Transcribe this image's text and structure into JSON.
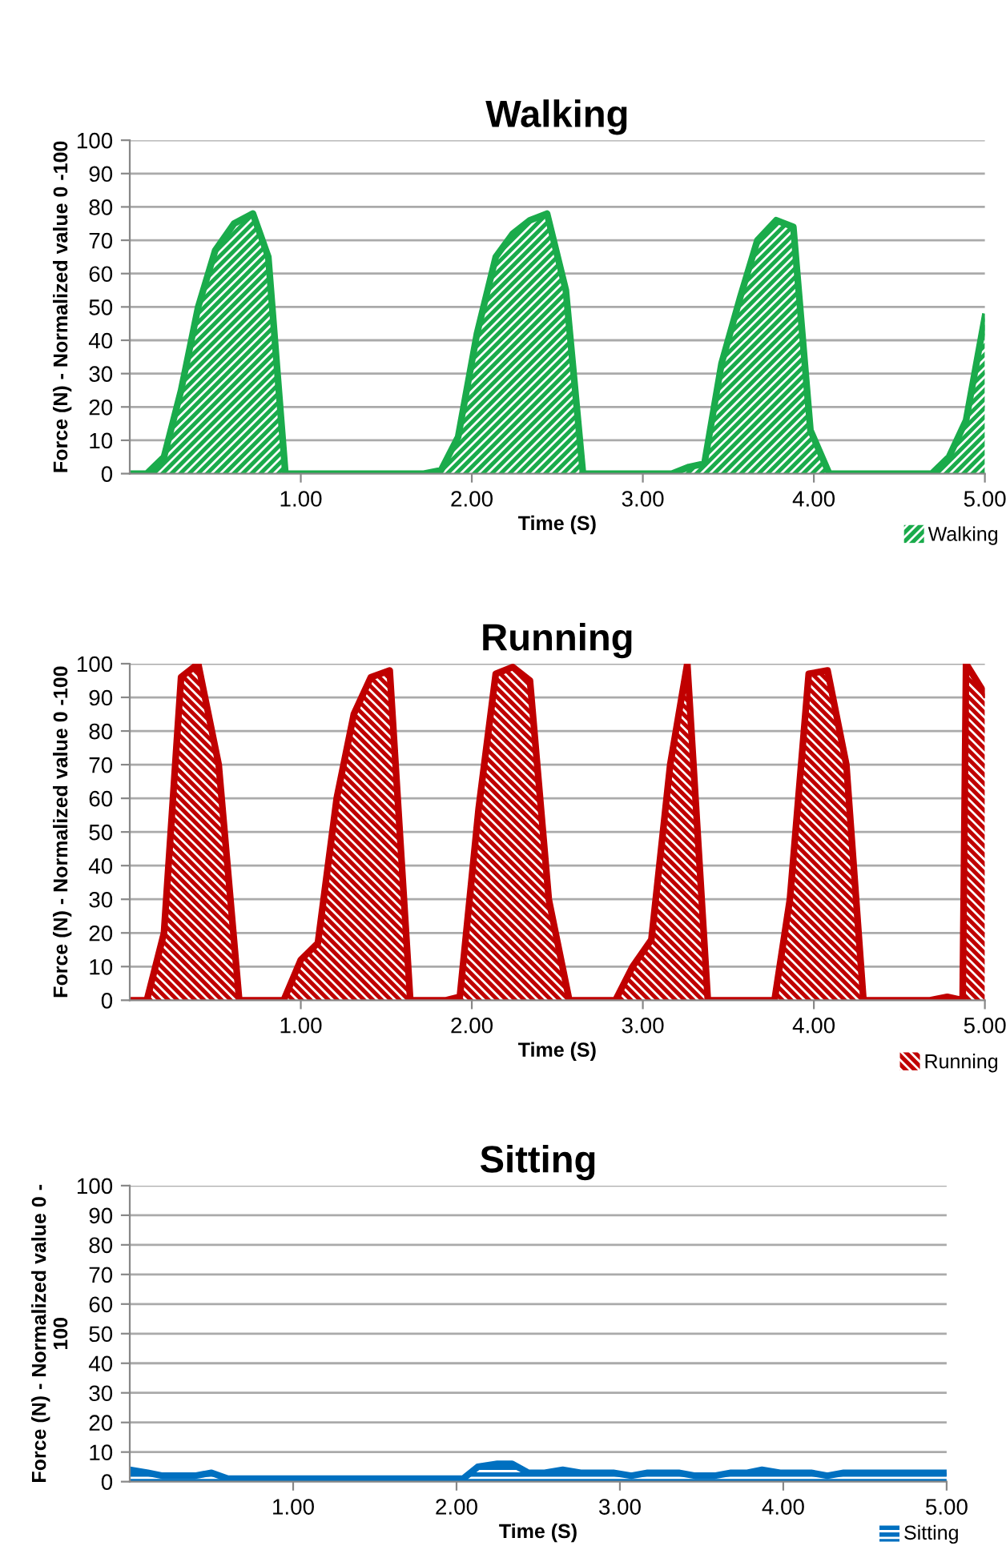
{
  "chart_data": [
    {
      "type": "area",
      "title": "Walking",
      "xlabel": "Time (S)",
      "ylabel": "Force (N) - Normalized value 0 -100",
      "xlim": [
        0,
        5
      ],
      "ylim": [
        0,
        100
      ],
      "xticks": [
        {
          "value": 1,
          "label": "1.00"
        },
        {
          "value": 2,
          "label": "2.00"
        },
        {
          "value": 3,
          "label": "3.00"
        },
        {
          "value": 4,
          "label": "4.00"
        },
        {
          "value": 5,
          "label": "5.00"
        }
      ],
      "yticks": [
        0,
        10,
        20,
        30,
        40,
        50,
        60,
        70,
        80,
        90,
        100
      ],
      "grid": "y",
      "legend": "bottom right",
      "series": [
        {
          "name": "Walking",
          "color": "#1aab4b",
          "x": [
            0,
            0.1,
            0.2,
            0.3,
            0.4,
            0.5,
            0.61,
            0.72,
            0.81,
            0.91,
            1.72,
            1.82,
            1.92,
            2.03,
            2.14,
            2.24,
            2.34,
            2.44,
            2.55,
            2.65,
            3.17,
            3.27,
            3.36,
            3.46,
            3.57,
            3.67,
            3.78,
            3.88,
            3.98,
            4.09,
            4.69,
            4.79,
            4.89,
            5.0
          ],
          "values": [
            0,
            0,
            5,
            25,
            50,
            67,
            75,
            78,
            65,
            0,
            0,
            1,
            11,
            42,
            65,
            72,
            76,
            78,
            55,
            0,
            0,
            2,
            3,
            33,
            53,
            70,
            76,
            74,
            13,
            0,
            0,
            5,
            16,
            47
          ]
        }
      ]
    },
    {
      "type": "area",
      "title": "Running",
      "xlabel": "Time (S)",
      "ylabel": "Force (N) - Normalized value 0 -100",
      "xlim": [
        0,
        5
      ],
      "ylim": [
        0,
        100
      ],
      "xticks": [
        {
          "value": 1,
          "label": "1.00"
        },
        {
          "value": 2,
          "label": "2.00"
        },
        {
          "value": 3,
          "label": "3.00"
        },
        {
          "value": 4,
          "label": "4.00"
        },
        {
          "value": 5,
          "label": "5.00"
        }
      ],
      "yticks": [
        0,
        10,
        20,
        30,
        40,
        50,
        60,
        70,
        80,
        90,
        100
      ],
      "grid": "y",
      "legend": "bottom right",
      "series": [
        {
          "name": "Running",
          "color": "#c00000",
          "x": [
            0,
            0.1,
            0.2,
            0.3,
            0.4,
            0.52,
            0.64,
            0.9,
            1.0,
            1.1,
            1.21,
            1.31,
            1.41,
            1.52,
            1.64,
            1.85,
            1.93,
            2.04,
            2.14,
            2.24,
            2.34,
            2.45,
            2.57,
            2.84,
            2.94,
            3.05,
            3.16,
            3.26,
            3.38,
            3.77,
            3.86,
            3.97,
            4.08,
            4.19,
            4.29,
            4.68,
            4.78,
            4.87,
            4.89,
            5.0
          ],
          "values": [
            0,
            0,
            20,
            96,
            100,
            70,
            0,
            0,
            12,
            17,
            60,
            85,
            96,
            98,
            0,
            0,
            1,
            57,
            97,
            99,
            95,
            30,
            0,
            0,
            10,
            18,
            70,
            100,
            0,
            0,
            30,
            97,
            98,
            70,
            0,
            0,
            1,
            0,
            100,
            91
          ]
        }
      ]
    },
    {
      "type": "area",
      "title": "Sitting",
      "xlabel": "Time (S)",
      "ylabel": "Force (N) - Normalized value 0 -\n100",
      "xlim": [
        0,
        5
      ],
      "ylim": [
        0,
        100
      ],
      "xticks": [
        {
          "value": 1,
          "label": "1.00"
        },
        {
          "value": 2,
          "label": "2.00"
        },
        {
          "value": 3,
          "label": "3.00"
        },
        {
          "value": 4,
          "label": "4.00"
        },
        {
          "value": 5,
          "label": "5.00"
        }
      ],
      "yticks": [
        0,
        10,
        20,
        30,
        40,
        50,
        60,
        70,
        80,
        90,
        100
      ],
      "grid": "y",
      "legend": "bottom right",
      "series": [
        {
          "name": "Sitting",
          "color": "#0070c0",
          "x": [
            0,
            0.11,
            0.2,
            0.4,
            0.5,
            0.6,
            2.04,
            2.13,
            2.25,
            2.34,
            2.44,
            2.54,
            2.65,
            2.76,
            2.96,
            3.07,
            3.17,
            3.36,
            3.46,
            3.58,
            3.68,
            3.78,
            3.87,
            3.98,
            4.17,
            4.27,
            4.37,
            5.0
          ],
          "values": [
            4,
            3,
            2,
            2,
            3,
            1,
            1,
            5,
            6,
            6,
            3,
            3,
            4,
            3,
            3,
            2,
            3,
            3,
            2,
            2,
            3,
            3,
            4,
            3,
            3,
            2,
            3,
            3
          ]
        }
      ]
    }
  ]
}
